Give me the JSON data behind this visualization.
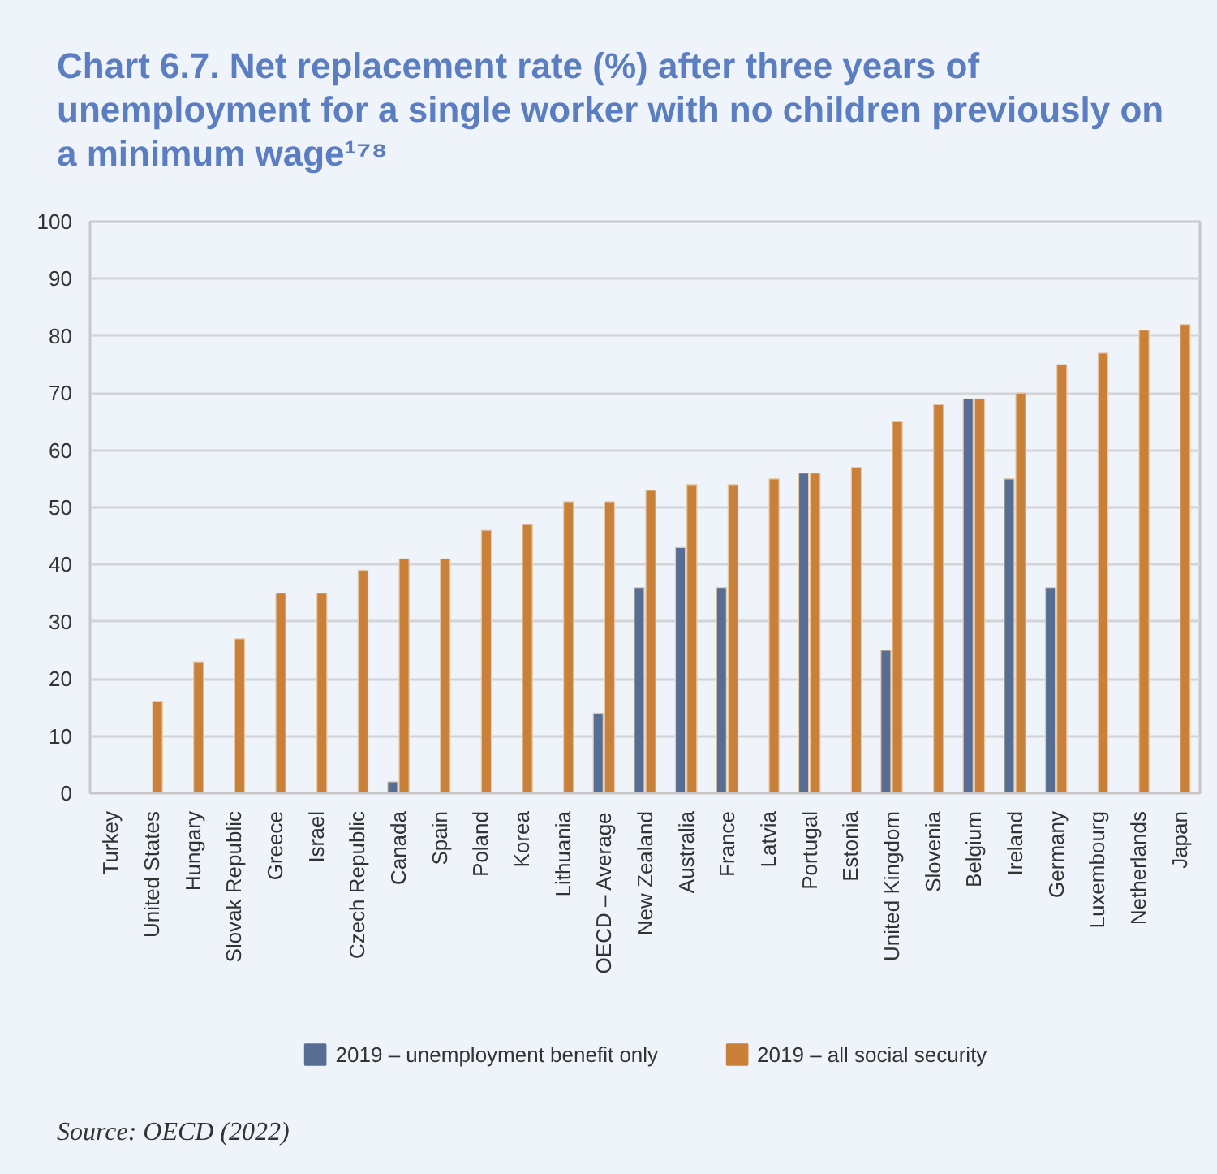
{
  "chart_data": {
    "type": "bar",
    "title": "Chart 6.7. Net replacement rate (%) after three years of unemployment for a single worker with no children previously on a minimum wage¹⁷⁸",
    "categories": [
      "Turkey",
      "United States",
      "Hungary",
      "Slovak Republic",
      "Greece",
      "Israel",
      "Czech Republic",
      "Canada",
      "Spain",
      "Poland",
      "Korea",
      "Lithuania",
      "OECD – Average",
      "New Zealand",
      "Australia",
      "France",
      "Latvia",
      "Portugal",
      "Estonia",
      "United Kingdom",
      "Slovenia",
      "Belgium",
      "Ireland",
      "Germany",
      "Luxembourg",
      "Netherlands",
      "Japan"
    ],
    "series": [
      {
        "name": "2019 – unemployment benefit only",
        "color": "#566e94",
        "values": [
          null,
          null,
          null,
          null,
          null,
          null,
          null,
          2,
          null,
          null,
          null,
          null,
          14,
          36,
          43,
          36,
          null,
          56,
          null,
          25,
          null,
          69,
          55,
          36,
          null,
          null,
          null
        ]
      },
      {
        "name": "2019 – all social security",
        "color": "#c98038",
        "values": [
          null,
          16,
          23,
          27,
          35,
          35,
          39,
          41,
          41,
          46,
          47,
          51,
          51,
          53,
          54,
          54,
          55,
          56,
          57,
          65,
          68,
          69,
          70,
          75,
          77,
          81,
          82
        ]
      }
    ],
    "ylim": [
      0,
      100
    ],
    "yticks": [
      0,
      10,
      20,
      30,
      40,
      50,
      60,
      70,
      80,
      90,
      100
    ],
    "grid": "y",
    "legend": "bottom",
    "annotations": [
      "Source: OECD (2022)"
    ]
  }
}
